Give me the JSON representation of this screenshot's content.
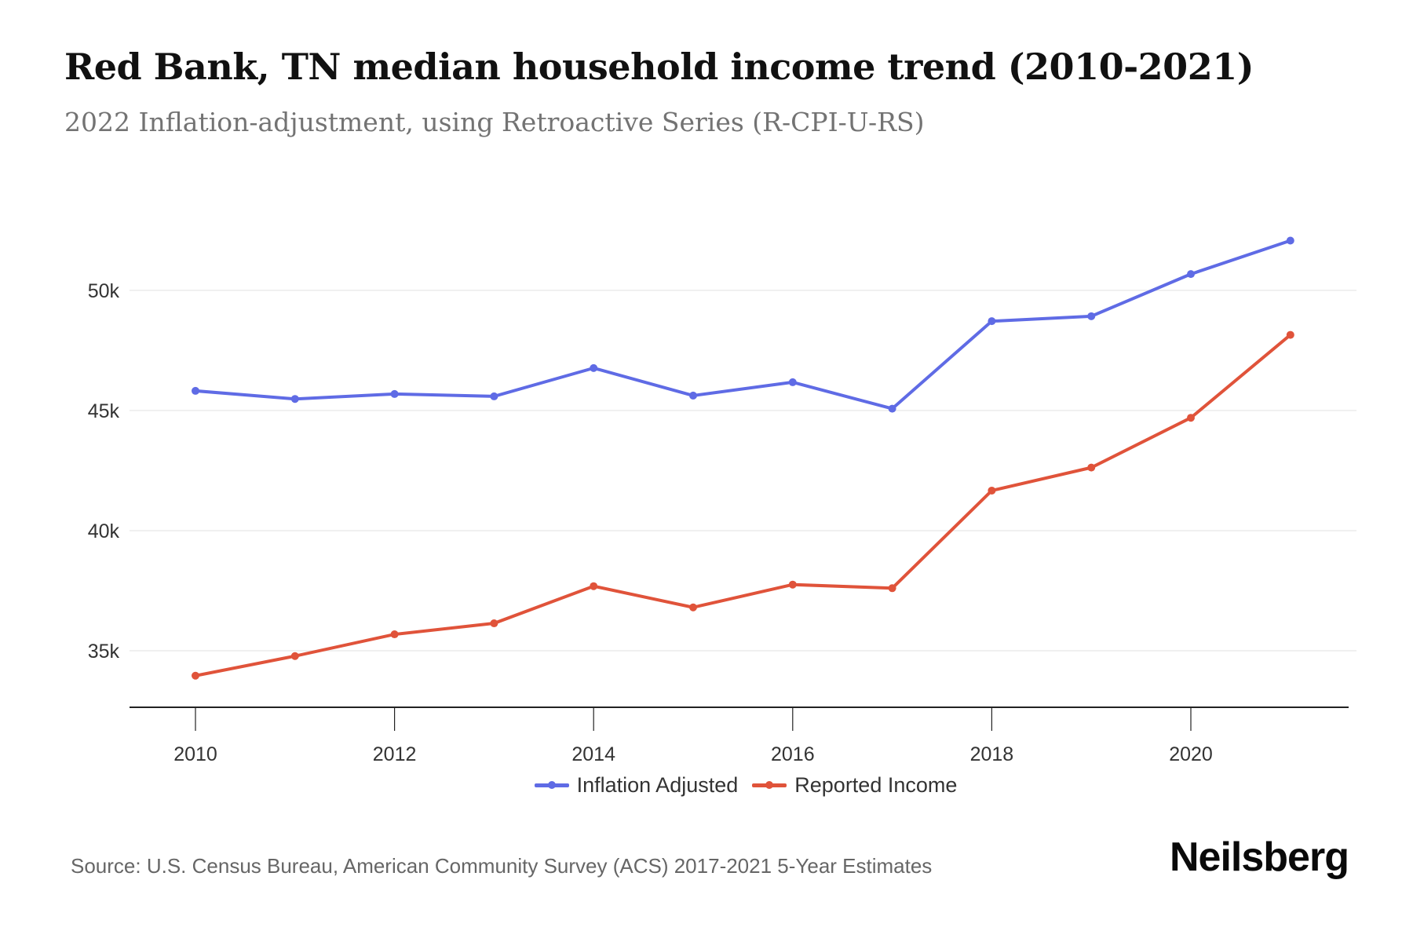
{
  "header": {
    "title": "Red Bank, TN median household income trend (2010-2021)",
    "subtitle": "2022 Inflation-adjustment, using Retroactive Series (R-CPI-U-RS)"
  },
  "footer": {
    "source": "Source: U.S. Census Bureau, American Community Survey (ACS) 2017-2021 5-Year Estimates",
    "brand": "Neilsberg"
  },
  "chart_data": {
    "type": "line",
    "title": "Red Bank, TN median household income trend (2010-2021)",
    "subtitle": "2022 Inflation-adjustment, using Retroactive Series (R-CPI-U-RS)",
    "xlabel": "",
    "ylabel": "",
    "x": [
      2010,
      2011,
      2012,
      2013,
      2014,
      2015,
      2016,
      2017,
      2018,
      2019,
      2020,
      2021
    ],
    "x_ticks": [
      2010,
      2012,
      2014,
      2016,
      2018,
      2020
    ],
    "x_tick_labels": [
      "2010",
      "2012",
      "2014",
      "2016",
      "2018",
      "2020"
    ],
    "xlim": [
      2009.35,
      2021.65
    ],
    "y_ticks": [
      35000,
      40000,
      45000,
      50000
    ],
    "y_tick_labels": [
      "35k",
      "40k",
      "45k",
      "50k"
    ],
    "ylim": [
      32650,
      53000
    ],
    "grid": "horizontal",
    "legend_position": "bottom-center",
    "series": [
      {
        "name": "Inflation Adjusted",
        "color": "#5F6BE5",
        "values": [
          45817,
          45480,
          45686,
          45588,
          46765,
          45620,
          46176,
          45075,
          48716,
          48922,
          50676,
          52069
        ]
      },
      {
        "name": "Reported Income",
        "color": "#E0533A",
        "values": [
          33964,
          34781,
          35686,
          36144,
          37690,
          36807,
          37755,
          37605,
          41667,
          42625,
          44696,
          48147
        ]
      }
    ]
  }
}
